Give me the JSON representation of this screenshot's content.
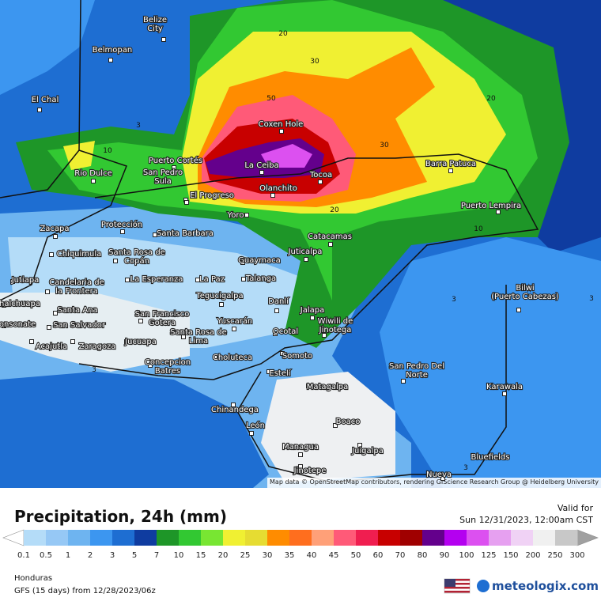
{
  "header": {
    "title": "Precipitation, 24h (mm)",
    "valid_label": "Valid for",
    "valid_time": "Sun 12/31/2023, 12:00am CST"
  },
  "footer": {
    "region": "Honduras",
    "model_run": "GFS (15 days) from  12/28/2023/06z",
    "logo": "meteologix.com"
  },
  "map": {
    "attribution": "Map data © OpenStreetMap contributors, rendering GIScience Research Group @ Heidelberg University",
    "cities": [
      "Belize City",
      "Belmopan",
      "El Chal",
      "Rio Dulce",
      "Puerto Cortés",
      "San Pedro Sula",
      "El Progreso",
      "La Ceiba",
      "Coxen Hole",
      "Tocoa",
      "Olanchito",
      "Barra Patuca",
      "Puerto Lempira",
      "Yoro",
      "Zacapa",
      "Protección",
      "Santa Barbara",
      "Catacamas",
      "Juticalpa",
      "Chiquimula",
      "Santa Rosa de Copán",
      "Guaymaca",
      "Talanga",
      "Jutiapa",
      "La Esperanza",
      "La Paz",
      "Candelaria de la Frontera",
      "Bilwi (Puerto Cabezas)",
      "Tegucigalpa",
      "Danlí",
      "halchuapa",
      "Santa Ana",
      "Jalapa",
      "San Francisco Gotera",
      "Yuscarán",
      "onsonate",
      "San Salvador",
      "Wiwili de Jinotega",
      "Ocotal",
      "Acajutla",
      "Zaragoza",
      "Jucuapa",
      "Santa Rosa de Lima",
      "Somoto",
      "Choluteca",
      "Concepcion Batres",
      "San Pedro Del Norte",
      "Estelí",
      "Matagalpa",
      "Karawala",
      "Chinandega",
      "Boaco",
      "León",
      "Managua",
      "Juigalpa",
      "Bluefields",
      "Jinotepe",
      "Nueva"
    ],
    "contour_labels": [
      "20",
      "30",
      "50",
      "30",
      "20",
      "20",
      "10",
      "3",
      "10",
      "3",
      "3",
      "3",
      "3"
    ]
  },
  "legend": {
    "values": [
      0.1,
      0.5,
      1,
      2,
      3,
      5,
      7,
      10,
      15,
      20,
      25,
      30,
      35,
      40,
      45,
      50,
      60,
      70,
      80,
      90,
      100,
      125,
      150,
      200,
      250,
      300
    ],
    "colors": [
      "#b4dcf8",
      "#96c8f5",
      "#6eb4f0",
      "#3c96f0",
      "#1e6ed2",
      "#0f3ca0",
      "#1e9628",
      "#32c832",
      "#78e632",
      "#f0f032",
      "#e6dc32",
      "#ff8c00",
      "#ff6e1e",
      "#ffa078",
      "#ff5a78",
      "#f01e50",
      "#c80000",
      "#a00000",
      "#64008c",
      "#b400f0",
      "#dc50f0",
      "#e6a0f0",
      "#f0d2f5",
      "#f0f0f0",
      "#c8c8c8"
    ],
    "under_color": "#ffffff",
    "over_color": "#a0a0a0"
  }
}
